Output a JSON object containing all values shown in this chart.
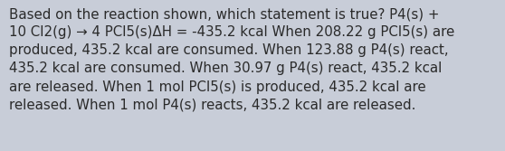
{
  "text": "Based on the reaction shown, which statement is true? P4(s) +\n10 Cl2(g) → 4 PCl5(s)ΔH = -435.2 kcal When 208.22 g PCl5(s) are\nproduced, 435.2 kcal are consumed. When 123.88 g P4(s) react,\n435.2 kcal are consumed. When 30.97 g P4(s) react, 435.2 kcal\nare released. When 1 mol PCl5(s) is produced, 435.2 kcal are\nreleased. When 1 mol P4(s) reacts, 435.2 kcal are released.",
  "bg_color": "#c8cdd8",
  "text_color": "#2a2a2a",
  "font_size": 10.8,
  "fig_width": 5.58,
  "fig_height": 1.67,
  "dpi": 100
}
